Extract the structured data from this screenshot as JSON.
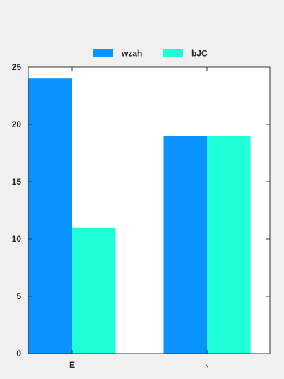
{
  "chart_data": {
    "type": "bar",
    "categories": [
      "E",
      "N"
    ],
    "series": [
      {
        "name": "wzah",
        "values": [
          24,
          19
        ],
        "color": "#0b93ff"
      },
      {
        "name": "bJC",
        "values": [
          11,
          19
        ],
        "color": "#1effd8"
      }
    ],
    "ylim": [
      0,
      25
    ],
    "yticks": [
      0,
      5,
      10,
      15,
      20,
      25
    ],
    "legend_position": "top-center",
    "grid": false,
    "xlabel": "",
    "ylabel": "",
    "title": ""
  }
}
